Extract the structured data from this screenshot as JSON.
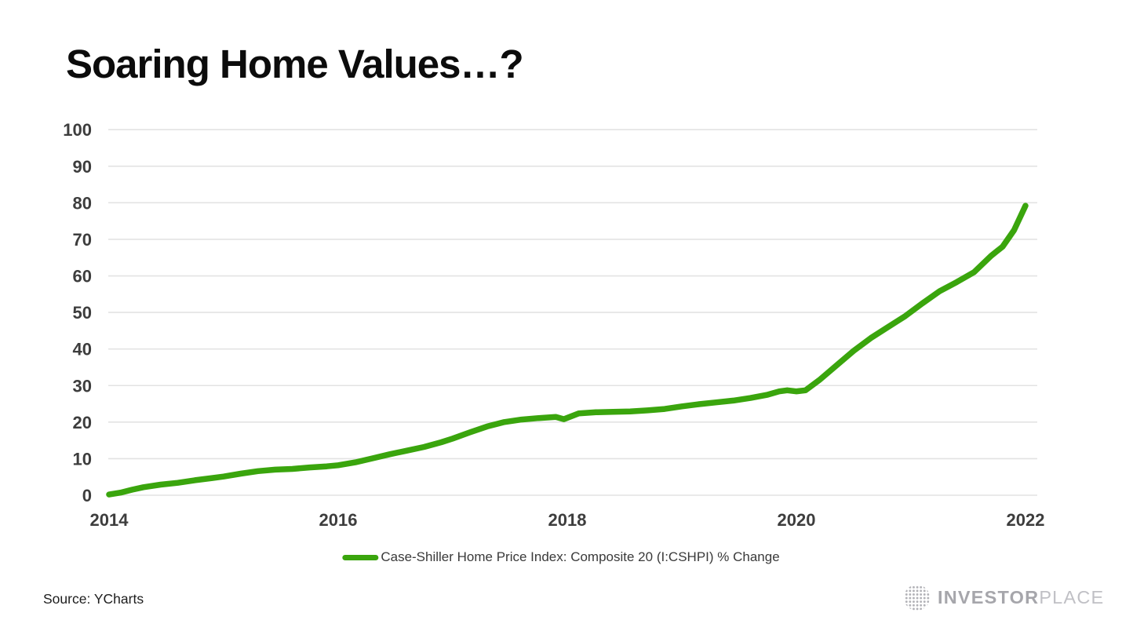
{
  "header": {
    "title": "Soaring Home Values…?"
  },
  "chart_data": {
    "type": "line",
    "title": "Soaring Home Values…?",
    "xlabel": "",
    "ylabel": "",
    "xlim": [
      2014,
      2022
    ],
    "ylim": [
      0,
      100
    ],
    "x_ticks": [
      2014,
      2016,
      2018,
      2020,
      2022
    ],
    "y_ticks": [
      0,
      10,
      20,
      30,
      40,
      50,
      60,
      70,
      80,
      90,
      100
    ],
    "grid": "horizontal",
    "gridline_color": "#e3e3e3",
    "axis_label_color": "#3d3d3d",
    "legend_position": "bottom-center",
    "series": [
      {
        "name": "Case-Shiller Home Price Index: Composite 20 (I:CSHPI) % Change",
        "color": "#3aa50d",
        "points": [
          [
            2014.0,
            0.2
          ],
          [
            2014.1,
            0.7
          ],
          [
            2014.2,
            1.5
          ],
          [
            2014.3,
            2.2
          ],
          [
            2014.45,
            2.9
          ],
          [
            2014.6,
            3.4
          ],
          [
            2014.75,
            4.1
          ],
          [
            2014.9,
            4.7
          ],
          [
            2015.0,
            5.1
          ],
          [
            2015.15,
            5.9
          ],
          [
            2015.3,
            6.6
          ],
          [
            2015.45,
            7.0
          ],
          [
            2015.6,
            7.2
          ],
          [
            2015.75,
            7.6
          ],
          [
            2015.9,
            7.9
          ],
          [
            2016.0,
            8.2
          ],
          [
            2016.15,
            9.0
          ],
          [
            2016.3,
            10.1
          ],
          [
            2016.45,
            11.2
          ],
          [
            2016.6,
            12.2
          ],
          [
            2016.75,
            13.2
          ],
          [
            2016.9,
            14.5
          ],
          [
            2017.0,
            15.5
          ],
          [
            2017.15,
            17.2
          ],
          [
            2017.3,
            18.8
          ],
          [
            2017.45,
            20.0
          ],
          [
            2017.6,
            20.7
          ],
          [
            2017.75,
            21.1
          ],
          [
            2017.9,
            21.4
          ],
          [
            2017.97,
            20.8
          ],
          [
            2018.1,
            22.4
          ],
          [
            2018.25,
            22.7
          ],
          [
            2018.4,
            22.8
          ],
          [
            2018.55,
            22.9
          ],
          [
            2018.7,
            23.2
          ],
          [
            2018.85,
            23.6
          ],
          [
            2019.0,
            24.3
          ],
          [
            2019.15,
            24.9
          ],
          [
            2019.3,
            25.4
          ],
          [
            2019.45,
            25.9
          ],
          [
            2019.6,
            26.6
          ],
          [
            2019.75,
            27.5
          ],
          [
            2019.85,
            28.4
          ],
          [
            2019.92,
            28.7
          ],
          [
            2020.0,
            28.4
          ],
          [
            2020.08,
            28.7
          ],
          [
            2020.2,
            31.5
          ],
          [
            2020.35,
            35.5
          ],
          [
            2020.5,
            39.5
          ],
          [
            2020.65,
            43.0
          ],
          [
            2020.8,
            46.0
          ],
          [
            2020.95,
            49.0
          ],
          [
            2021.1,
            52.5
          ],
          [
            2021.25,
            55.8
          ],
          [
            2021.4,
            58.3
          ],
          [
            2021.55,
            61.0
          ],
          [
            2021.7,
            65.5
          ],
          [
            2021.8,
            68.0
          ],
          [
            2021.9,
            72.5
          ],
          [
            2022.0,
            79.2
          ]
        ]
      }
    ]
  },
  "legend": {
    "label": "Case-Shiller Home Price Index: Composite 20 (I:CSHPI) % Change"
  },
  "footer": {
    "source": "Source: YCharts",
    "logo_bold": "INVESTOR",
    "logo_light": "PLACE"
  }
}
